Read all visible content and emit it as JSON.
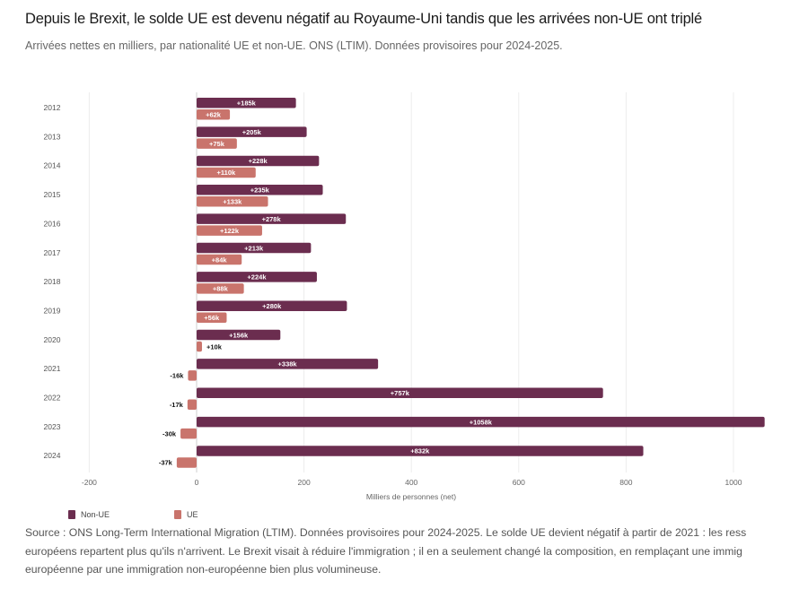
{
  "header": {
    "title": "Depuis le Brexit, le solde UE est devenu négatif au Royaume-Uni tandis que les arrivées non-UE ont triplé",
    "subtitle": "Arrivées nettes en milliers, par nationalité UE et non-UE. ONS (LTIM). Données provisoires pour 2024-2025."
  },
  "chart_data": {
    "type": "bar",
    "orientation": "horizontal",
    "categories": [
      "2012",
      "2013",
      "2014",
      "2015",
      "2016",
      "2017",
      "2018",
      "2019",
      "2020",
      "2021",
      "2022",
      "2023",
      "2024"
    ],
    "series": [
      {
        "name": "Non-UE",
        "color": "#6b2d4f",
        "values": [
          185,
          205,
          228,
          235,
          278,
          213,
          224,
          280,
          156,
          338,
          757,
          1058,
          832
        ],
        "labels": [
          "+185k",
          "+205k",
          "+228k",
          "+235k",
          "+278k",
          "+213k",
          "+224k",
          "+280k",
          "+156k",
          "+338k",
          "+757k",
          "+1058k",
          "+832k"
        ]
      },
      {
        "name": "UE",
        "color": "#c9746c",
        "values": [
          62,
          75,
          110,
          133,
          122,
          84,
          88,
          56,
          10,
          -16,
          -17,
          -30,
          -37
        ],
        "labels": [
          "+62k",
          "+75k",
          "+110k",
          "+133k",
          "+122k",
          "+84k",
          "+88k",
          "+56k",
          "+10k",
          "-16k",
          "-17k",
          "-30k",
          "-37k"
        ]
      }
    ],
    "xlabel": "Milliers de personnes (net)",
    "ylabel": "",
    "xlim": [
      -200,
      1060
    ],
    "xticks": [
      -200,
      0,
      200,
      400,
      600,
      800,
      1000
    ],
    "grid": true,
    "legend": "bottom-left"
  },
  "legend": [
    {
      "label": "Non-UE",
      "color": "#6b2d4f"
    },
    {
      "label": "UE",
      "color": "#c9746c"
    }
  ],
  "footer": {
    "lines": [
      "Source : ONS Long-Term International Migration (LTIM). Données provisoires pour 2024-2025. Le solde UE devient négatif à partir de 2021 : les ress",
      "européens repartent plus qu'ils n'arrivent. Le Brexit visait à réduire l'immigration ; il en a seulement changé la composition, en remplaçant une immig",
      "européenne par une immigration non-européenne bien plus volumineuse."
    ]
  }
}
